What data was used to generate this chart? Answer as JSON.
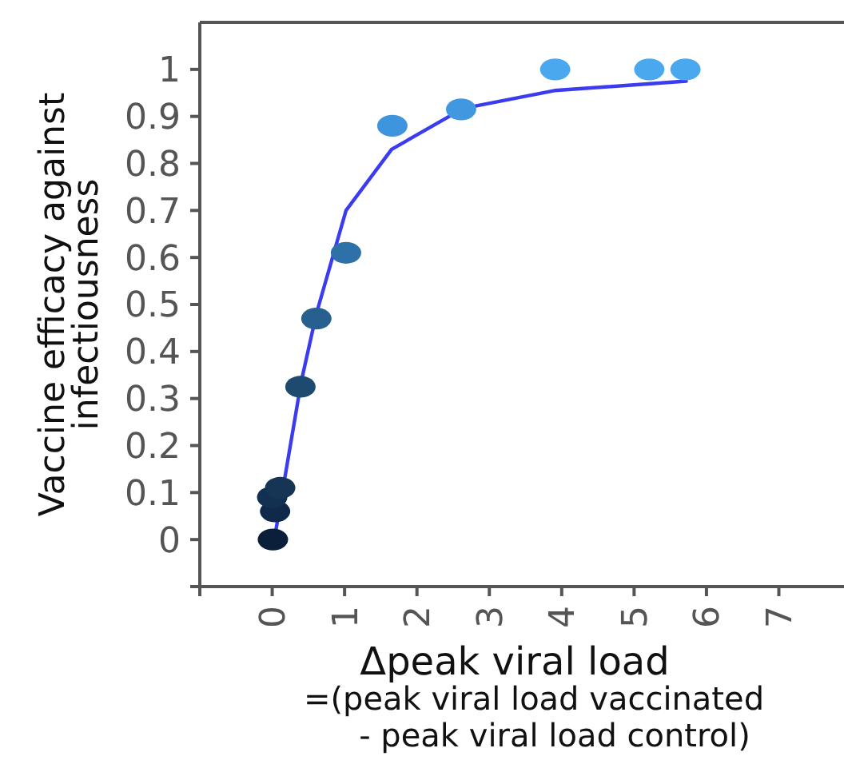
{
  "chart_data": {
    "type": "scatter",
    "xlabel": "Δpeak viral load\n=(peak viral load vaccinated\n- peak viral load control)",
    "ylabel": "Vaccine efficacy against\ninfectiousness",
    "xlim": [
      -1,
      7.9
    ],
    "xticks": [
      {
        "value": -1,
        "label": null
      },
      0,
      1,
      2,
      3,
      4,
      5,
      6,
      7
    ],
    "ylim": [
      -0.1,
      1.1
    ],
    "yticks": [
      {
        "value": -0.1,
        "label": null
      },
      0,
      0.1,
      0.2,
      0.3,
      0.4,
      0.5,
      0.6,
      0.7,
      0.8,
      0.9,
      1
    ],
    "grid": false,
    "series": [
      {
        "type": "line",
        "color": "#3b3bf0",
        "marker": "none",
        "line_style": "solid",
        "x": [
          0.04,
          0.4,
          0.61,
          1.02,
          1.65,
          2.64,
          3.9,
          5.72
        ],
        "values": [
          0.01,
          0.335,
          0.48,
          0.7,
          0.83,
          0.917,
          0.955,
          0.975
        ]
      },
      {
        "marker": "circle",
        "x": [
          0.01,
          0.04,
          0,
          0.11,
          0.39,
          0.61,
          1.02,
          1.66,
          2.61,
          3.91,
          5.21,
          5.71
        ],
        "values": [
          0,
          0.06,
          0.09,
          0.11,
          0.325,
          0.47,
          0.61,
          0.88,
          0.915,
          1,
          1,
          1
        ],
        "colors": [
          "#0b1f3a",
          "#10294a",
          "#132f52",
          "#163555",
          "#1f4a70",
          "#27608f",
          "#2e70a8",
          "#3f95dd",
          "#4099e0",
          "#4aa8ee",
          "#4aa8ee",
          "#4aa8ee"
        ]
      }
    ]
  }
}
